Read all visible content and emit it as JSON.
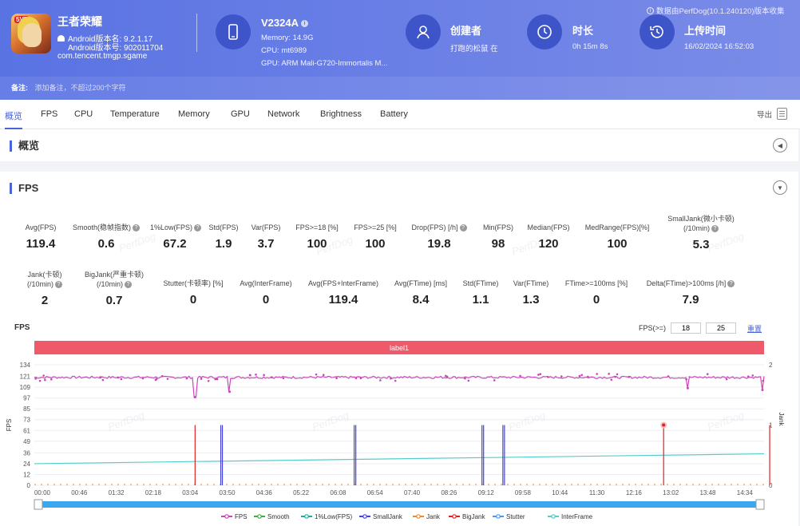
{
  "header": {
    "app_name": "王者荣耀",
    "badge": "5V5",
    "android_version_name": "Android版本名: 9.2.1.17",
    "android_version_code": "Android版本号: 902011704",
    "package": "com.tencent.tmgp.sgame",
    "device": {
      "name": "V2324A",
      "memory": "Memory: 14.9G",
      "cpu": "CPU: mt6989",
      "gpu": "GPU: ARM Mali-G720-Immortalis M..."
    },
    "creator": {
      "title": "创建者",
      "value": "打跑的松鼠 在"
    },
    "duration": {
      "title": "时长",
      "value": "0h 15m 8s"
    },
    "upload": {
      "title": "上传时间",
      "value": "16/02/2024 16:52:03"
    },
    "data_source": "数据由PerfDog(10.1.240120)版本收集",
    "remark_label": "备注:",
    "remark_placeholder": "添加备注，不超过200个字符"
  },
  "tabs": [
    "概览",
    "FPS",
    "CPU",
    "Temperature",
    "Memory",
    "GPU",
    "Network",
    "Brightness",
    "Battery"
  ],
  "export_label": "导出",
  "overview_title": "概览",
  "fps_title": "FPS",
  "metrics_row1": [
    {
      "label": "Avg(FPS)",
      "value": "119.4"
    },
    {
      "label": "Smooth(稳帧指数)",
      "value": "0.6",
      "help": true
    },
    {
      "label": "1%Low(FPS)",
      "value": "67.2",
      "help": true
    },
    {
      "label": "Std(FPS)",
      "value": "1.9"
    },
    {
      "label": "Var(FPS)",
      "value": "3.7"
    },
    {
      "label": "FPS>=18 [%]",
      "value": "100"
    },
    {
      "label": "FPS>=25 [%]",
      "value": "100"
    },
    {
      "label": "Drop(FPS) [/h]",
      "value": "19.8",
      "help": true
    },
    {
      "label": "Min(FPS)",
      "value": "98"
    },
    {
      "label": "Median(FPS)",
      "value": "120"
    },
    {
      "label": "MedRange(FPS)[%]",
      "value": "100"
    },
    {
      "label": "SmallJank(微小卡顿)",
      "label2": "(/10min)",
      "value": "5.3",
      "help": true
    }
  ],
  "metrics_row2": [
    {
      "label": "Jank(卡顿)",
      "label2": "(/10min)",
      "value": "2",
      "help": true
    },
    {
      "label": "BigJank(严重卡顿)",
      "label2": "(/10min)",
      "value": "0.7",
      "help": true
    },
    {
      "label": "Stutter(卡顿率) [%]",
      "value": "0"
    },
    {
      "label": "Avg(InterFrame)",
      "value": "0"
    },
    {
      "label": "Avg(FPS+InterFrame)",
      "value": "119.4"
    },
    {
      "label": "Avg(FTime) [ms]",
      "value": "8.4"
    },
    {
      "label": "Std(FTime)",
      "value": "1.1"
    },
    {
      "label": "Var(FTime)",
      "value": "1.3"
    },
    {
      "label": "FTime>=100ms [%]",
      "value": "0"
    },
    {
      "label": "Delta(FTime)>100ms [/h]",
      "value": "7.9",
      "help": true
    }
  ],
  "fps_control": {
    "label": "FPS(>=)",
    "value1": "18",
    "value2": "25",
    "reset": "重置"
  },
  "watermark": "PerfDog",
  "chart_data": {
    "type": "line",
    "title": "FPS",
    "band_label": "label1",
    "ylabel": "FPS",
    "y2label": "Jank",
    "ylim": [
      0,
      134
    ],
    "y2lim": [
      0,
      2
    ],
    "yticks": [
      "134",
      "121",
      "109",
      "97",
      "85",
      "73",
      "61",
      "49",
      "36",
      "24",
      "12",
      "0"
    ],
    "y2ticks": [
      "2",
      "1",
      "0"
    ],
    "xticks": [
      "00:00",
      "00:46",
      "01:32",
      "02:18",
      "03:04",
      "03:50",
      "04:36",
      "05:22",
      "06:08",
      "06:54",
      "07:40",
      "08:26",
      "09:12",
      "09:58",
      "10:44",
      "11:30",
      "12:16",
      "13:02",
      "13:48",
      "14:34"
    ],
    "duration_sec": 908,
    "series": [
      {
        "name": "FPS",
        "color": "#cc44bb",
        "baseline": 120,
        "dips": [
          {
            "t": 200,
            "v": 98
          },
          {
            "t": 243,
            "v": 104
          },
          {
            "t": 813,
            "v": 108
          },
          {
            "t": 906,
            "v": 106
          }
        ]
      },
      {
        "name": "Smooth",
        "color": "#44aa44"
      },
      {
        "name": "1%Low(FPS)",
        "color": "#22aa99"
      },
      {
        "name": "SmallJank",
        "color": "#4444dd",
        "events": [
          232,
          398,
          557,
          583
        ]
      },
      {
        "name": "Jank",
        "color": "#ee8833"
      },
      {
        "name": "BigJank",
        "color": "#dd2222",
        "events": [
          200,
          783,
          915
        ]
      },
      {
        "name": "Stutter",
        "color": "#4499ee"
      },
      {
        "name": "InterFrame",
        "color": "#55cccc",
        "trend": [
          24,
          35
        ]
      }
    ]
  }
}
